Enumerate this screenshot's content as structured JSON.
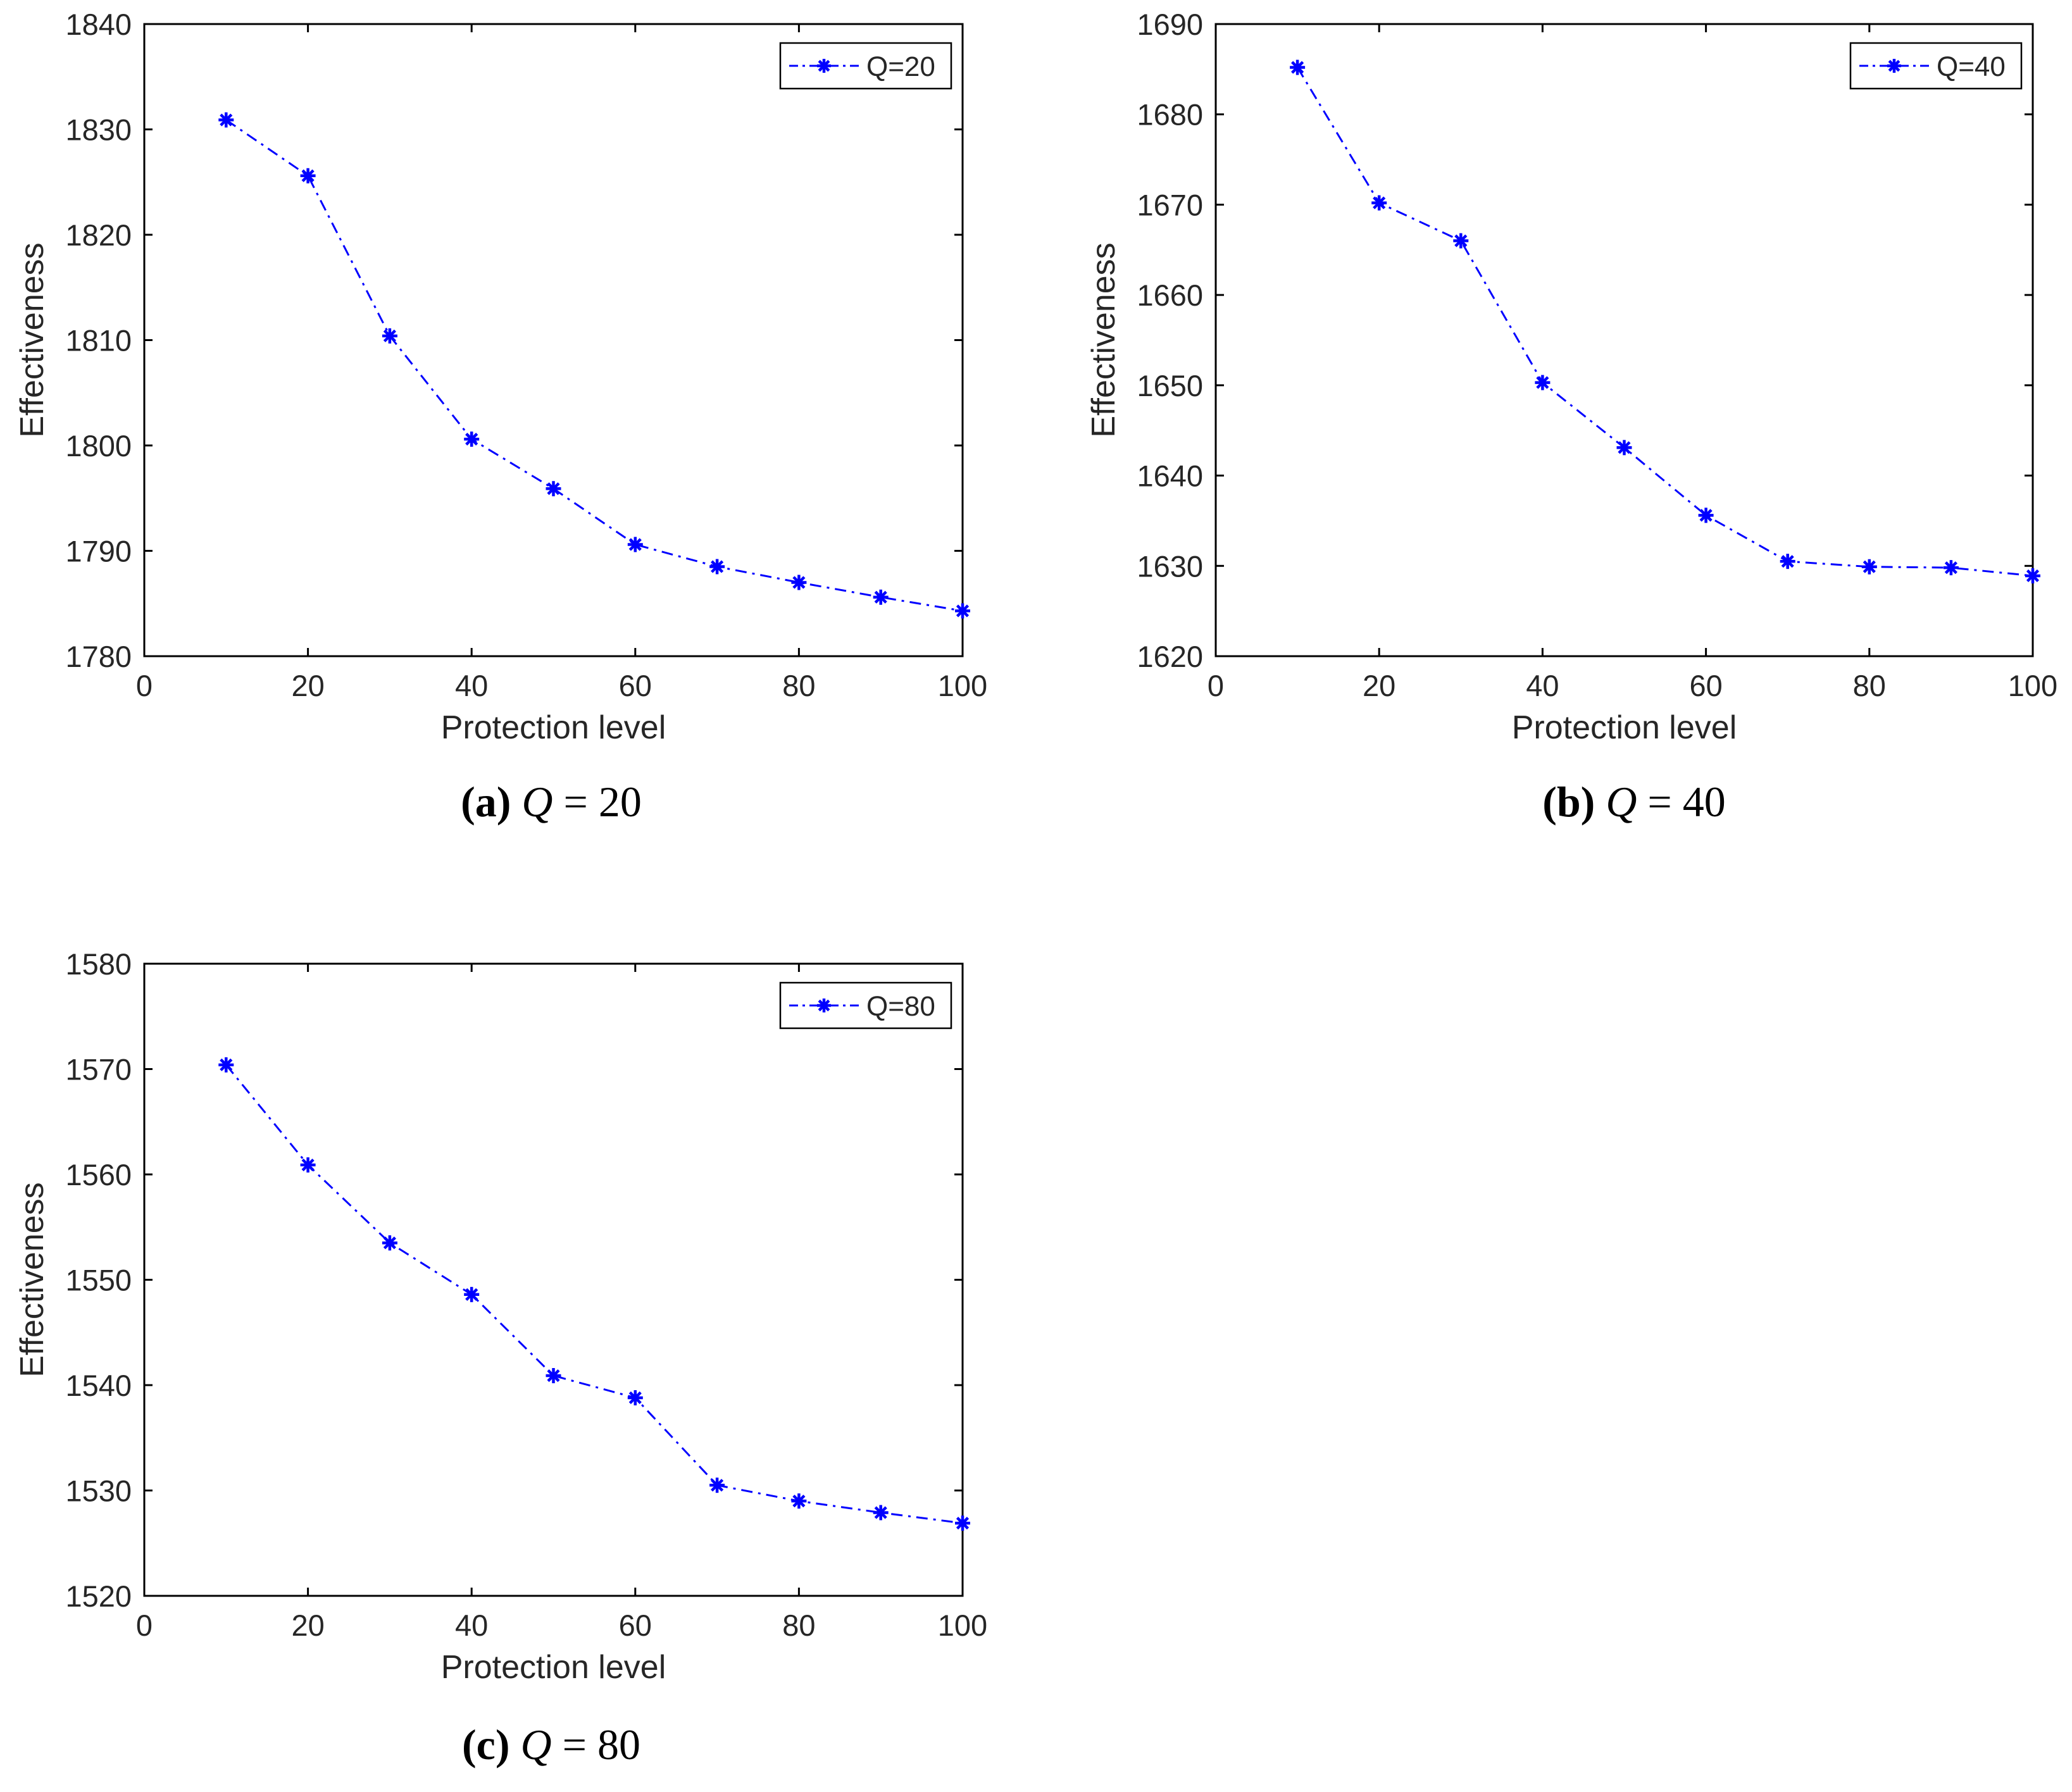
{
  "colors": {
    "series": "#0000ff",
    "axis": "#000000",
    "text": "#262626"
  },
  "chart_data": [
    {
      "id": "a",
      "type": "line",
      "xlabel": "Protection level",
      "ylabel": "Effectiveness",
      "xlim": [
        0,
        100
      ],
      "ylim": [
        1780,
        1840
      ],
      "xticks": [
        0,
        20,
        40,
        60,
        80,
        100
      ],
      "yticks": [
        1780,
        1790,
        1800,
        1810,
        1820,
        1830,
        1840
      ],
      "legend_position": "top-right",
      "grid": false,
      "caption": {
        "tag": "(a)",
        "variable": "Q",
        "equals": "=",
        "value": "20"
      },
      "series": [
        {
          "name": "Q=20",
          "line_style": "dash-dot",
          "marker": "asterisk",
          "x": [
            10,
            20,
            30,
            40,
            50,
            60,
            70,
            80,
            90,
            100
          ],
          "y": [
            1830.9,
            1825.6,
            1810.4,
            1800.6,
            1795.9,
            1790.6,
            1788.5,
            1787.0,
            1785.6,
            1784.3
          ]
        }
      ]
    },
    {
      "id": "b",
      "type": "line",
      "xlabel": "Protection level",
      "ylabel": "Effectiveness",
      "xlim": [
        0,
        100
      ],
      "ylim": [
        1620,
        1690
      ],
      "xticks": [
        0,
        20,
        40,
        60,
        80,
        100
      ],
      "yticks": [
        1620,
        1630,
        1640,
        1650,
        1660,
        1670,
        1680,
        1690
      ],
      "legend_position": "top-right",
      "grid": false,
      "caption": {
        "tag": "(b)",
        "variable": "Q",
        "equals": "=",
        "value": "40"
      },
      "series": [
        {
          "name": "Q=40",
          "line_style": "dash-dot",
          "marker": "asterisk",
          "x": [
            10,
            20,
            30,
            40,
            50,
            60,
            70,
            80,
            90,
            100
          ],
          "y": [
            1685.2,
            1670.2,
            1666.0,
            1650.3,
            1643.1,
            1635.6,
            1630.5,
            1629.9,
            1629.8,
            1628.9
          ]
        }
      ]
    },
    {
      "id": "c",
      "type": "line",
      "xlabel": "Protection level",
      "ylabel": "Effectiveness",
      "xlim": [
        0,
        100
      ],
      "ylim": [
        1520,
        1580
      ],
      "xticks": [
        0,
        20,
        40,
        60,
        80,
        100
      ],
      "yticks": [
        1520,
        1530,
        1540,
        1550,
        1560,
        1570,
        1580
      ],
      "legend_position": "top-right",
      "grid": false,
      "caption": {
        "tag": "(c)",
        "variable": "Q",
        "equals": "=",
        "value": "80"
      },
      "series": [
        {
          "name": "Q=80",
          "line_style": "dash-dot",
          "marker": "asterisk",
          "x": [
            10,
            20,
            30,
            40,
            50,
            60,
            70,
            80,
            90,
            100
          ],
          "y": [
            1570.4,
            1560.9,
            1553.5,
            1548.6,
            1540.9,
            1538.8,
            1530.5,
            1529.0,
            1527.9,
            1526.9
          ]
        }
      ]
    }
  ]
}
